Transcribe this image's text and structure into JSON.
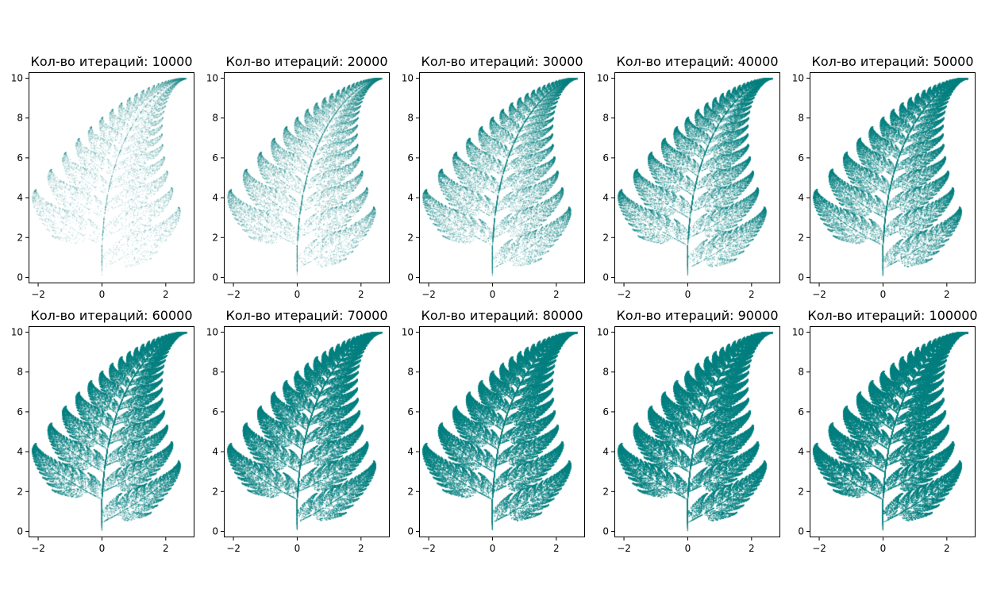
{
  "chart_data": {
    "type": "scatter",
    "fractal": "barnsley-fern",
    "marker_color": "#008080",
    "xlim": [
      -2.3,
      2.9
    ],
    "ylim": [
      -0.3,
      10.3
    ],
    "x_ticks": [
      -2,
      0,
      2
    ],
    "y_ticks": [
      0,
      2,
      4,
      6,
      8,
      10
    ],
    "panels": [
      {
        "title": "Кол-во итераций: 10000",
        "iterations": 10000
      },
      {
        "title": "Кол-во итераций: 20000",
        "iterations": 20000
      },
      {
        "title": "Кол-во итераций: 30000",
        "iterations": 30000
      },
      {
        "title": "Кол-во итераций: 40000",
        "iterations": 40000
      },
      {
        "title": "Кол-во итераций: 50000",
        "iterations": 50000
      },
      {
        "title": "Кол-во итераций: 60000",
        "iterations": 60000
      },
      {
        "title": "Кол-во итераций: 70000",
        "iterations": 70000
      },
      {
        "title": "Кол-во итераций: 80000",
        "iterations": 80000
      },
      {
        "title": "Кол-во итераций: 90000",
        "iterations": 90000
      },
      {
        "title": "Кол-во итераций: 100000",
        "iterations": 100000
      }
    ]
  }
}
